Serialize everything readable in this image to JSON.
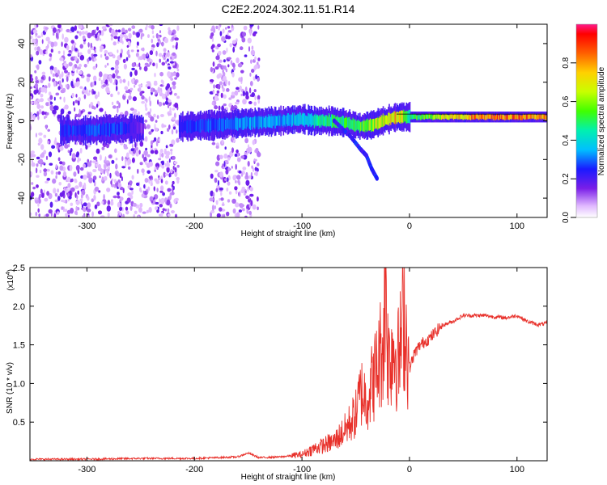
{
  "title": "C2E2.2024.302.11.51.R14",
  "colors": {
    "snr_line": "#e8302a",
    "axis": "#000000",
    "low_band": "#5a1be0",
    "background": "#ffffff"
  },
  "chart_data": [
    {
      "type": "heatmap",
      "name": "spectrogram",
      "xlabel": "Height of straight line (km)",
      "ylabel": "Frequency (Hz)",
      "xlim": [
        -353,
        128
      ],
      "ylim": [
        -50,
        50
      ],
      "x_ticks": [
        -300,
        -200,
        -100,
        0,
        100
      ],
      "y_ticks": [
        -40,
        -20,
        0,
        20,
        40
      ],
      "grid": false,
      "colorbar": {
        "label": "Normalized spectral amplitude",
        "range": [
          0.0,
          1.0
        ],
        "ticks": [
          0.0,
          0.2,
          0.4,
          0.6,
          0.8
        ],
        "tick_labels": [
          "0.0",
          "0.2",
          "0.4",
          "0.6",
          "0.8"
        ],
        "colormap": "rainbow (magenta-blue-cyan-green-yellow-red)"
      },
      "features": {
        "ridge": [
          {
            "x": -325,
            "y": -5,
            "amp": 0.25
          },
          {
            "x": -300,
            "y": -5,
            "amp": 0.28
          },
          {
            "x": -270,
            "y": -4,
            "amp": 0.3
          },
          {
            "x": -250,
            "y": -4,
            "amp": 0.15
          },
          {
            "x": -212,
            "y": -3,
            "amp": 0.25
          },
          {
            "x": -180,
            "y": -2,
            "amp": 0.3
          },
          {
            "x": -150,
            "y": -1,
            "amp": 0.35
          },
          {
            "x": -120,
            "y": 0,
            "amp": 0.35
          },
          {
            "x": -100,
            "y": 1,
            "amp": 0.4
          },
          {
            "x": -90,
            "y": 0,
            "amp": 0.45
          },
          {
            "x": -75,
            "y": 0,
            "amp": 0.5
          },
          {
            "x": -60,
            "y": -1,
            "amp": 0.5
          },
          {
            "x": -45,
            "y": -3,
            "amp": 0.55
          },
          {
            "x": -35,
            "y": -2,
            "amp": 0.6
          },
          {
            "x": -25,
            "y": 0,
            "amp": 0.7
          },
          {
            "x": -12,
            "y": 2,
            "amp": 0.8
          },
          {
            "x": 0,
            "y": 2,
            "amp": 0.5
          },
          {
            "x": 20,
            "y": 2,
            "amp": 0.6
          },
          {
            "x": 40,
            "y": 2,
            "amp": 0.75
          },
          {
            "x": 60,
            "y": 2,
            "amp": 0.85
          },
          {
            "x": 80,
            "y": 2,
            "amp": 0.9
          },
          {
            "x": 100,
            "y": 2,
            "amp": 0.85
          },
          {
            "x": 128,
            "y": 2,
            "amp": 0.8
          }
        ],
        "descending_branch": [
          {
            "x": -70,
            "y": 0
          },
          {
            "x": -55,
            "y": -8
          },
          {
            "x": -45,
            "y": -15
          },
          {
            "x": -40,
            "y": -18
          },
          {
            "x": -35,
            "y": -25
          },
          {
            "x": -30,
            "y": -30
          }
        ],
        "noise_regions_x": [
          [
            -353,
            -215
          ],
          [
            -185,
            -140
          ]
        ]
      }
    },
    {
      "type": "line",
      "name": "snr",
      "xlabel": "Height of straight line (km)",
      "ylabel": "SNR (10 * v/v)",
      "y_scale_label": "(x10",
      "y_scale_exp": "4",
      "xlim": [
        -353,
        128
      ],
      "ylim": [
        0,
        2.5
      ],
      "x_ticks": [
        -300,
        -200,
        -100,
        0,
        100
      ],
      "y_ticks": [
        0.5,
        1.0,
        1.5,
        2.0,
        2.5
      ],
      "y_tick_labels": [
        "0.5",
        "1.0",
        "1.5",
        "2.0",
        "2.5"
      ],
      "grid": false,
      "series": [
        {
          "points": [
            [
              -353,
              0.02
            ],
            [
              -300,
              0.02
            ],
            [
              -250,
              0.03
            ],
            [
              -200,
              0.03
            ],
            [
              -160,
              0.05
            ],
            [
              -150,
              0.1
            ],
            [
              -140,
              0.04
            ],
            [
              -120,
              0.05
            ],
            [
              -100,
              0.08
            ],
            [
              -90,
              0.15
            ],
            [
              -80,
              0.2
            ],
            [
              -70,
              0.25
            ],
            [
              -60,
              0.4
            ],
            [
              -50,
              0.6
            ],
            [
              -45,
              0.9
            ],
            [
              -40,
              0.8
            ],
            [
              -35,
              1.0
            ],
            [
              -30,
              1.2
            ],
            [
              -27,
              1.4
            ],
            [
              -24,
              1.6
            ],
            [
              -22,
              2.5
            ],
            [
              -20,
              1.3
            ],
            [
              -15,
              1.5
            ],
            [
              -10,
              1.3
            ],
            [
              -5,
              1.9
            ],
            [
              0,
              1.2
            ],
            [
              5,
              1.4
            ],
            [
              10,
              1.5
            ],
            [
              20,
              1.6
            ],
            [
              30,
              1.75
            ],
            [
              40,
              1.8
            ],
            [
              50,
              1.88
            ],
            [
              60,
              1.88
            ],
            [
              70,
              1.88
            ],
            [
              80,
              1.86
            ],
            [
              90,
              1.85
            ],
            [
              100,
              1.88
            ],
            [
              110,
              1.8
            ],
            [
              120,
              1.76
            ],
            [
              128,
              1.78
            ]
          ]
        }
      ]
    }
  ]
}
